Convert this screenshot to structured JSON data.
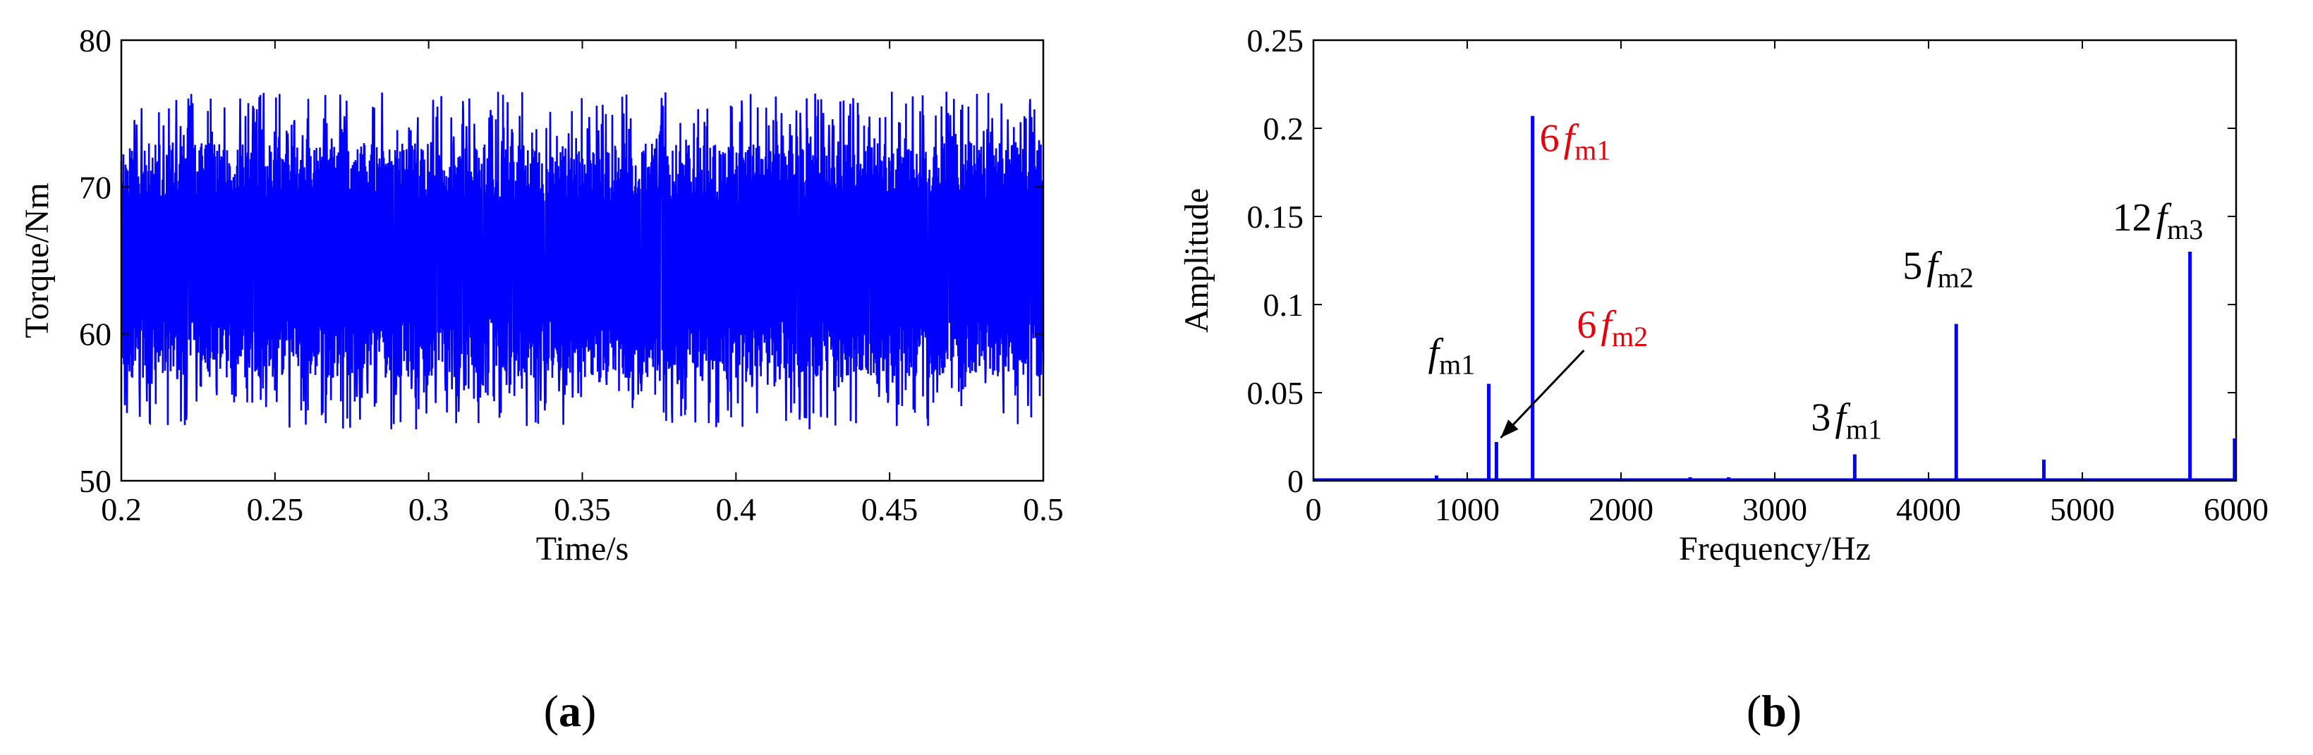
{
  "chart_data": [
    {
      "type": "line",
      "panel_label": "a",
      "xlabel": "Time/s",
      "ylabel": "Torque/Nm",
      "xlim": [
        0.2,
        0.5
      ],
      "ylim": [
        50,
        80
      ],
      "xticks": [
        0.2,
        0.25,
        0.3,
        0.35,
        0.4,
        0.45,
        0.5
      ],
      "xtick_labels": [
        "0.2",
        "0.25",
        "0.3",
        "0.35",
        "0.4",
        "0.45",
        "0.5"
      ],
      "yticks": [
        50,
        60,
        70,
        80
      ],
      "ytick_labels": [
        "50",
        "60",
        "70",
        "80"
      ],
      "grid": false,
      "color": "#0000ff",
      "signal": {
        "mean": 64.5,
        "min": 53.5,
        "max": 76.5,
        "dense_band": [
          57,
          73
        ]
      }
    },
    {
      "type": "line",
      "panel_label": "b",
      "xlabel": "Frequency/Hz",
      "ylabel": "Amplitude",
      "xlim": [
        0,
        6000
      ],
      "ylim": [
        0,
        0.25
      ],
      "xticks": [
        0,
        1000,
        2000,
        3000,
        4000,
        5000,
        6000
      ],
      "xtick_labels": [
        "0",
        "1000",
        "2000",
        "3000",
        "4000",
        "5000",
        "6000"
      ],
      "yticks": [
        0,
        0.05,
        0.1,
        0.15,
        0.2,
        0.25
      ],
      "ytick_labels": [
        "0",
        "0.05",
        "0.1",
        "0.15",
        "0.2",
        "0.25"
      ],
      "grid": false,
      "color": "#0000ff",
      "peaks": [
        {
          "x": 800,
          "y": 0.003
        },
        {
          "x": 1140,
          "y": 0.055
        },
        {
          "x": 1190,
          "y": 0.022
        },
        {
          "x": 1425,
          "y": 0.207
        },
        {
          "x": 2450,
          "y": 0.002
        },
        {
          "x": 2700,
          "y": 0.002
        },
        {
          "x": 3520,
          "y": 0.015
        },
        {
          "x": 4180,
          "y": 0.089
        },
        {
          "x": 4750,
          "y": 0.012
        },
        {
          "x": 5700,
          "y": 0.13
        },
        {
          "x": 5990,
          "y": 0.024
        }
      ],
      "annotations": [
        {
          "coef": "",
          "f": "f",
          "sub": "m1",
          "color": "#000000",
          "x": 1140,
          "y": 0.055
        },
        {
          "coef": "6",
          "f": "f",
          "sub": "m2",
          "color": "#e8000b",
          "x": 1190,
          "y": 0.022,
          "arrow": true
        },
        {
          "coef": "6",
          "f": "f",
          "sub": "m1",
          "color": "#e8000b",
          "x": 1425,
          "y": 0.207
        },
        {
          "coef": "3",
          "f": "f",
          "sub": "m1",
          "color": "#000000",
          "x": 3520,
          "y": 0.015
        },
        {
          "coef": "5",
          "f": "f",
          "sub": "m2",
          "color": "#000000",
          "x": 4180,
          "y": 0.089
        },
        {
          "coef": "12",
          "f": "f",
          "sub": "m3",
          "color": "#000000",
          "x": 5700,
          "y": 0.13
        }
      ]
    }
  ]
}
